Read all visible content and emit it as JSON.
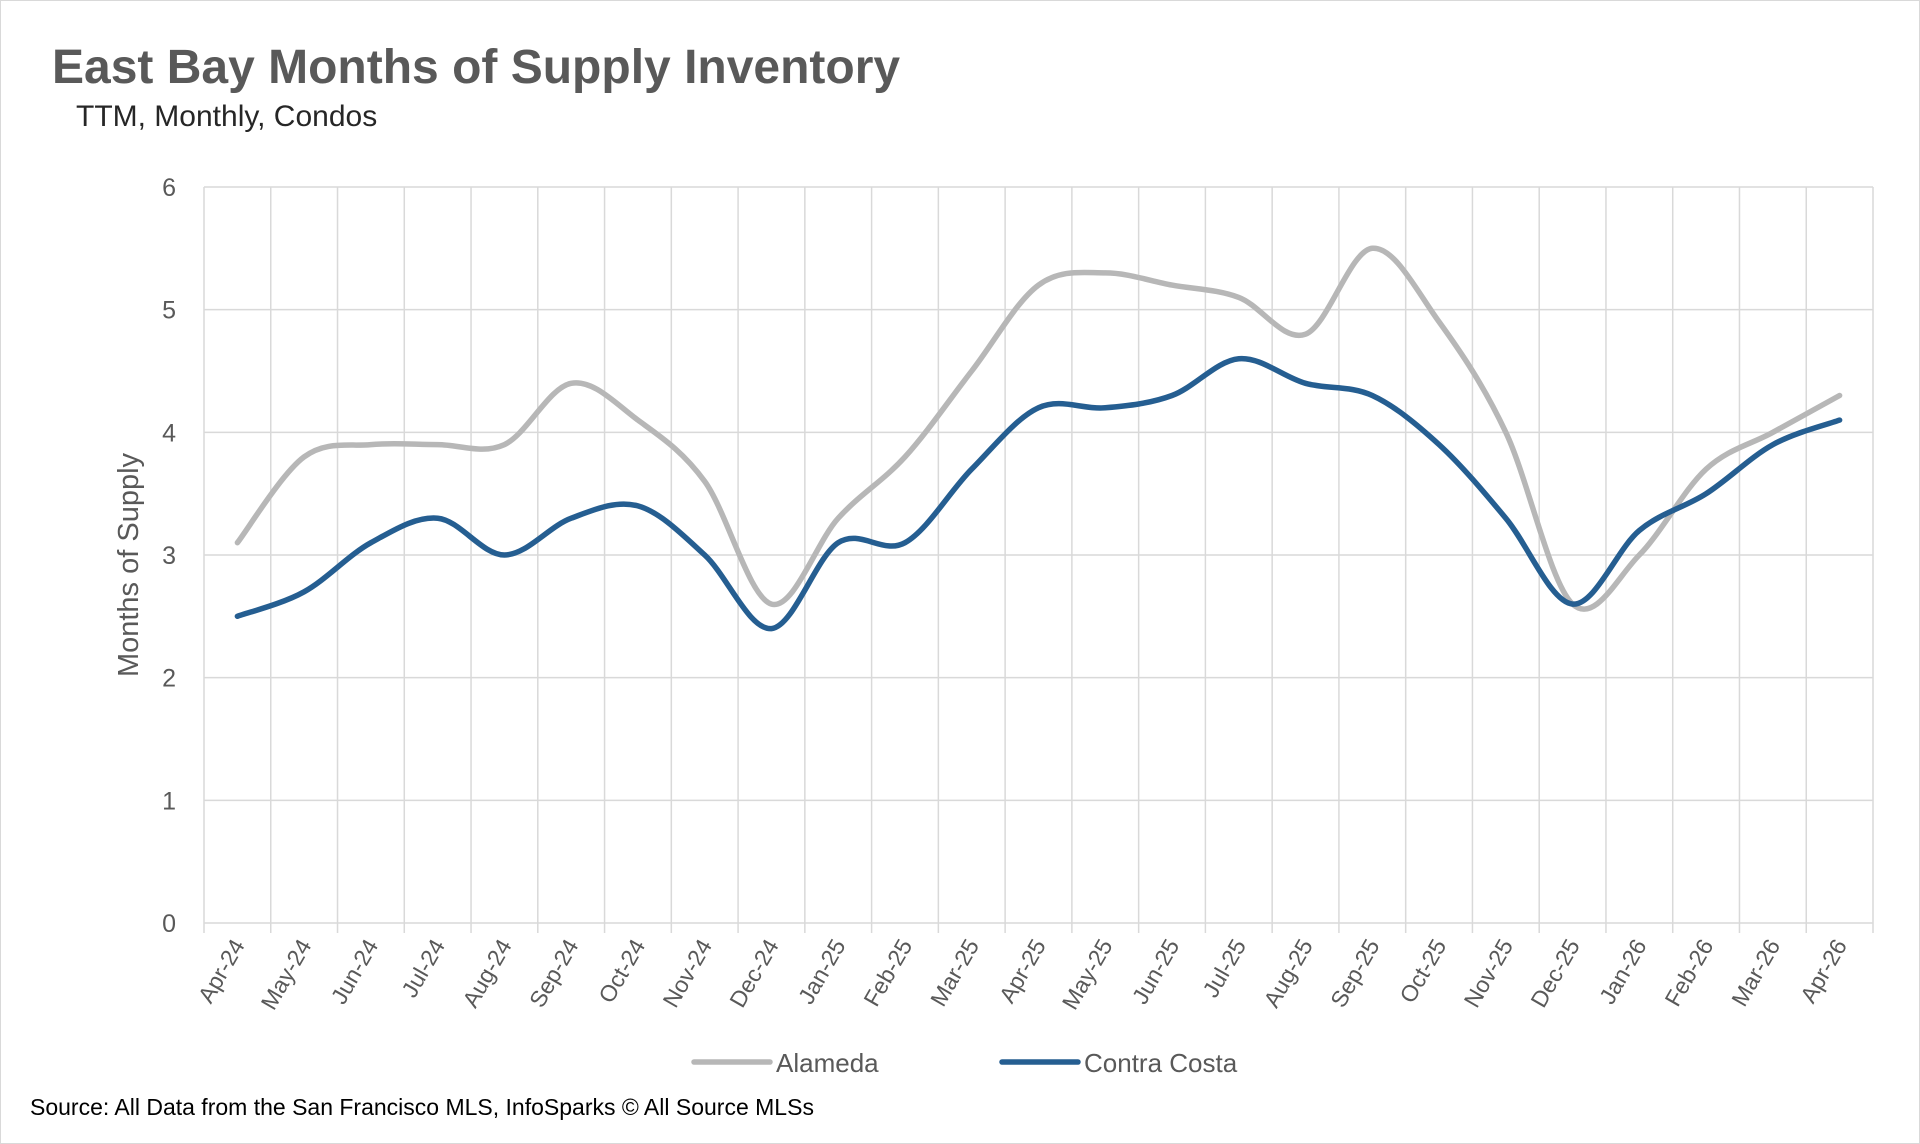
{
  "chart_data": {
    "type": "line",
    "title": "East Bay Months of Supply Inventory",
    "subtitle": "TTM, Monthly, Condos",
    "ylabel": "Months of Supply",
    "xlabel": "",
    "ylim": [
      0,
      6
    ],
    "yticks": [
      "0",
      "1",
      "2",
      "3",
      "4",
      "5",
      "6"
    ],
    "grid": true,
    "legend_position": "bottom",
    "categories": [
      "Apr-24",
      "May-24",
      "Jun-24",
      "Jul-24",
      "Aug-24",
      "Sep-24",
      "Oct-24",
      "Nov-24",
      "Dec-24",
      "Jan-25",
      "Feb-25",
      "Mar-25",
      "Apr-25",
      "May-25",
      "Jun-25",
      "Jul-25",
      "Aug-25",
      "Sep-25",
      "Oct-25",
      "Nov-25",
      "Dec-25",
      "Jan-26",
      "Feb-26",
      "Mar-26",
      "Apr-26"
    ],
    "series": [
      {
        "name": "Alameda",
        "color": "#b7b7b7",
        "values": [
          3.1,
          3.8,
          3.9,
          3.9,
          3.9,
          4.4,
          4.1,
          3.6,
          2.6,
          3.3,
          3.8,
          4.5,
          5.2,
          5.3,
          5.2,
          5.1,
          4.8,
          5.5,
          4.9,
          4.0,
          2.6,
          3.0,
          3.7,
          4.0,
          4.3
        ]
      },
      {
        "name": "Contra Costa",
        "color": "#255e91",
        "values": [
          2.5,
          2.7,
          3.1,
          3.3,
          3.0,
          3.3,
          3.4,
          3.0,
          2.4,
          3.1,
          3.1,
          3.7,
          4.2,
          4.2,
          4.3,
          4.6,
          4.4,
          4.3,
          3.9,
          3.3,
          2.6,
          3.2,
          3.5,
          3.9,
          4.1
        ]
      }
    ]
  },
  "source": "Source: All Data from the San Francisco MLS, InfoSparks © All Source MLSs"
}
